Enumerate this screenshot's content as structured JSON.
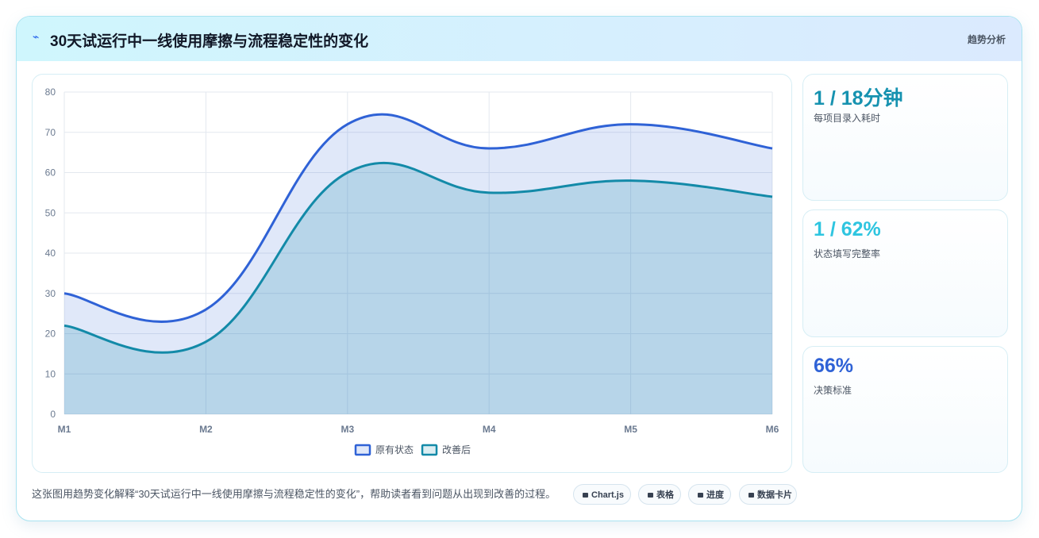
{
  "header": {
    "title": "30天试运行中一线使用摩擦与流程稳定性的变化",
    "tag": "趋势分析"
  },
  "chart_data": {
    "type": "area",
    "categories": [
      "M1",
      "M2",
      "M3",
      "M4",
      "M5",
      "M6"
    ],
    "series": [
      {
        "name": "原有状态",
        "color": "#2f62d6",
        "values": [
          30,
          26,
          72,
          66,
          72,
          66
        ]
      },
      {
        "name": "改善后",
        "color": "#138aa8",
        "values": [
          22,
          18,
          60,
          55,
          58,
          54
        ]
      }
    ],
    "ylim": [
      0,
      80
    ],
    "yticks": [
      0,
      10,
      20,
      30,
      40,
      50,
      60,
      70,
      80
    ],
    "grid": true,
    "legend": "bottom"
  },
  "cards": [
    {
      "value": "1 / 18分钟",
      "label": "每项目录入耗时",
      "color": "#1692b0"
    },
    {
      "value": "1 / 62%",
      "label": "状态填写完整率",
      "color": "#2ec5e0"
    },
    {
      "value": "66%",
      "label": "决策标准",
      "color": "#2f62d6"
    }
  ],
  "footer": {
    "text": "这张图用趋势变化解释“30天试运行中一线使用摩擦与流程稳定性的变化”，帮助读者看到问题从出现到改善的过程。",
    "chips": [
      "Chart.js",
      "表格",
      "进度",
      "数据卡片"
    ]
  }
}
